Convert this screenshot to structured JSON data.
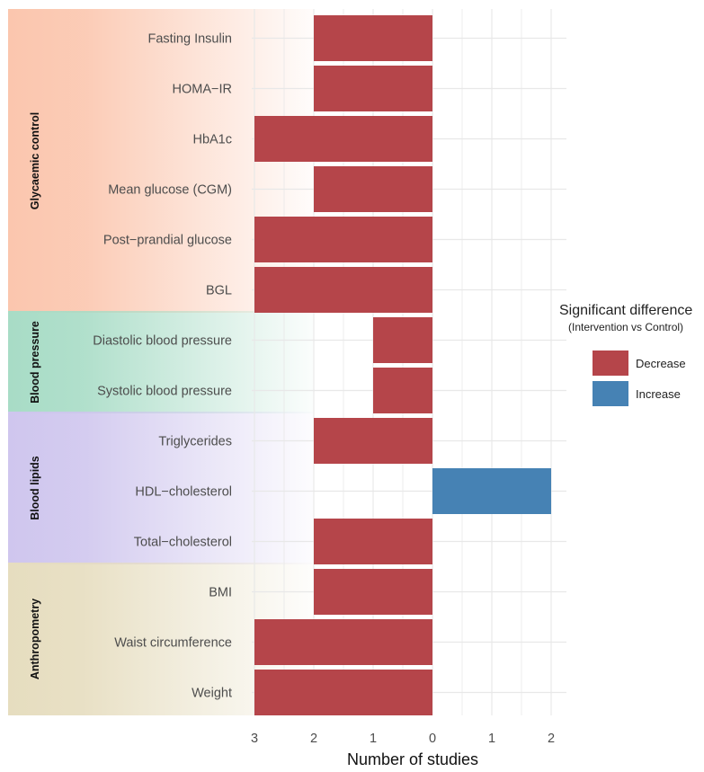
{
  "chart_data": {
    "type": "bar",
    "orientation": "horizontal",
    "xlabel": "Number of studies",
    "x_ticks": [
      "3",
      "2",
      "1",
      "0",
      "1",
      "2"
    ],
    "x_tick_values": [
      -3,
      -2,
      -1,
      0,
      1,
      2
    ],
    "xlim": [
      -3.3,
      2.3
    ],
    "groups": [
      {
        "name": "Glycaemic control",
        "color": "#FBC6AE",
        "items": [
          {
            "label": "Fasting Insulin",
            "value": 2,
            "direction": "Decrease"
          },
          {
            "label": "HOMA−IR",
            "value": 2,
            "direction": "Decrease"
          },
          {
            "label": "HbA1c",
            "value": 3,
            "direction": "Decrease"
          },
          {
            "label": "Mean glucose (CGM)",
            "value": 2,
            "direction": "Decrease"
          },
          {
            "label": "Post−prandial glucose",
            "value": 3,
            "direction": "Decrease"
          },
          {
            "label": "BGL",
            "value": 3,
            "direction": "Decrease"
          }
        ]
      },
      {
        "name": "Blood pressure",
        "color": "#A8DCC6",
        "items": [
          {
            "label": "Diastolic blood pressure",
            "value": 1,
            "direction": "Decrease"
          },
          {
            "label": "Systolic blood pressure",
            "value": 1,
            "direction": "Decrease"
          }
        ]
      },
      {
        "name": "Blood lipids",
        "color": "#CFC6EE",
        "items": [
          {
            "label": "Triglycerides",
            "value": 2,
            "direction": "Decrease"
          },
          {
            "label": "HDL−cholesterol",
            "value": 2,
            "direction": "Increase"
          },
          {
            "label": "Total−cholesterol",
            "value": 2,
            "direction": "Decrease"
          }
        ]
      },
      {
        "name": "Anthropometry",
        "color": "#E6DDBF",
        "items": [
          {
            "label": "BMI",
            "value": 2,
            "direction": "Decrease"
          },
          {
            "label": "Waist circumference",
            "value": 3,
            "direction": "Decrease"
          },
          {
            "label": "Weight",
            "value": 3,
            "direction": "Decrease"
          }
        ]
      }
    ],
    "legend": {
      "title": "Significant difference",
      "subtitle": "(Intervention vs Control)",
      "position": "right",
      "entries": [
        {
          "label": "Decrease",
          "color": "#B5454A"
        },
        {
          "label": "Increase",
          "color": "#4682B4"
        }
      ]
    }
  }
}
